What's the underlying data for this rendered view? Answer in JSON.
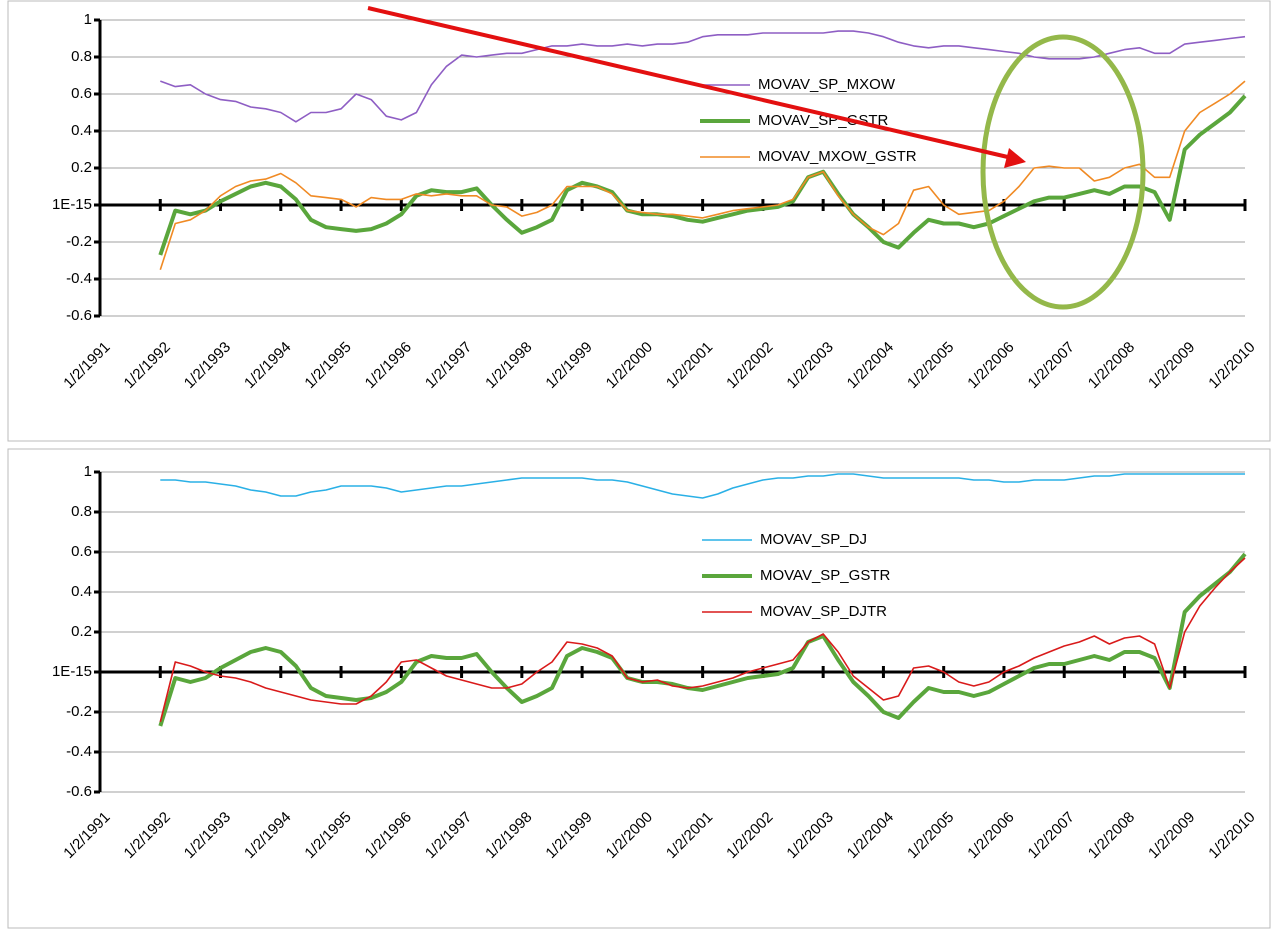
{
  "chart_data": [
    {
      "type": "line",
      "x": [
        1992,
        1992.25,
        1992.5,
        1992.75,
        1993,
        1993.25,
        1993.5,
        1993.75,
        1994,
        1994.25,
        1994.5,
        1994.75,
        1995,
        1995.25,
        1995.5,
        1995.75,
        1996,
        1996.25,
        1996.5,
        1996.75,
        1997,
        1997.25,
        1997.5,
        1997.75,
        1998,
        1998.25,
        1998.5,
        1998.75,
        1999,
        1999.25,
        1999.5,
        1999.75,
        2000,
        2000.25,
        2000.5,
        2000.75,
        2001,
        2001.25,
        2001.5,
        2001.75,
        2002,
        2002.25,
        2002.5,
        2002.75,
        2003,
        2003.25,
        2003.5,
        2003.75,
        2004,
        2004.25,
        2004.5,
        2004.75,
        2005,
        2005.25,
        2005.5,
        2005.75,
        2006,
        2006.25,
        2006.5,
        2006.75,
        2007,
        2007.25,
        2007.5,
        2007.75,
        2008,
        2008.25,
        2008.5,
        2008.75,
        2009,
        2009.25,
        2009.5,
        2009.75,
        2010
      ],
      "xlim": [
        1991,
        2010
      ],
      "xticks": [
        {
          "value": 1991,
          "label": "1/2/1991"
        },
        {
          "value": 1992,
          "label": "1/2/1992"
        },
        {
          "value": 1993,
          "label": "1/2/1993"
        },
        {
          "value": 1994,
          "label": "1/2/1994"
        },
        {
          "value": 1995,
          "label": "1/2/1995"
        },
        {
          "value": 1996,
          "label": "1/2/1996"
        },
        {
          "value": 1997,
          "label": "1/2/1997"
        },
        {
          "value": 1998,
          "label": "1/2/1998"
        },
        {
          "value": 1999,
          "label": "1/2/1999"
        },
        {
          "value": 2000,
          "label": "1/2/2000"
        },
        {
          "value": 2001,
          "label": "1/2/2001"
        },
        {
          "value": 2002,
          "label": "1/2/2002"
        },
        {
          "value": 2003,
          "label": "1/2/2003"
        },
        {
          "value": 2004,
          "label": "1/2/2004"
        },
        {
          "value": 2005,
          "label": "1/2/2005"
        },
        {
          "value": 2006,
          "label": "1/2/2006"
        },
        {
          "value": 2007,
          "label": "1/2/2007"
        },
        {
          "value": 2008,
          "label": "1/2/2008"
        },
        {
          "value": 2009,
          "label": "1/2/2009"
        },
        {
          "value": 2010,
          "label": "1/2/2010"
        }
      ],
      "ylim": [
        -0.6,
        1
      ],
      "yticks": [
        -0.6,
        -0.4,
        -0.2,
        {
          "value": 1e-15,
          "label": "1E-15"
        },
        0.2,
        0.4,
        0.6,
        0.8,
        1
      ],
      "grid": true,
      "legend": "center-right",
      "series": [
        {
          "name": "MOVAV_SP_MXOW",
          "color": "#8e5ec4",
          "values": [
            0.67,
            0.64,
            0.65,
            0.6,
            0.57,
            0.56,
            0.53,
            0.52,
            0.5,
            0.45,
            0.5,
            0.5,
            0.52,
            0.6,
            0.57,
            0.48,
            0.46,
            0.5,
            0.65,
            0.75,
            0.81,
            0.8,
            0.81,
            0.82,
            0.82,
            0.84,
            0.86,
            0.86,
            0.87,
            0.86,
            0.86,
            0.87,
            0.86,
            0.87,
            0.87,
            0.88,
            0.91,
            0.92,
            0.92,
            0.92,
            0.93,
            0.93,
            0.93,
            0.93,
            0.93,
            0.94,
            0.94,
            0.93,
            0.91,
            0.88,
            0.86,
            0.85,
            0.86,
            0.86,
            0.85,
            0.84,
            0.83,
            0.82,
            0.8,
            0.79,
            0.79,
            0.79,
            0.8,
            0.82,
            0.84,
            0.85,
            0.82,
            0.82,
            0.87,
            0.88,
            0.89,
            0.9,
            0.91
          ]
        },
        {
          "name": "MOVAV_SP_GSTR",
          "color": "#5aa63c",
          "values": [
            -0.27,
            -0.03,
            -0.05,
            -0.03,
            0.02,
            0.06,
            0.1,
            0.12,
            0.1,
            0.03,
            -0.08,
            -0.12,
            -0.13,
            -0.14,
            -0.13,
            -0.1,
            -0.05,
            0.05,
            0.08,
            0.07,
            0.07,
            0.09,
            0.0,
            -0.08,
            -0.15,
            -0.12,
            -0.08,
            0.08,
            0.12,
            0.1,
            0.07,
            -0.03,
            -0.05,
            -0.05,
            -0.06,
            -0.08,
            -0.09,
            -0.07,
            -0.05,
            -0.03,
            -0.02,
            -0.01,
            0.02,
            0.15,
            0.18,
            0.06,
            -0.05,
            -0.12,
            -0.2,
            -0.23,
            -0.15,
            -0.08,
            -0.1,
            -0.1,
            -0.12,
            -0.1,
            -0.06,
            -0.02,
            0.02,
            0.04,
            0.04,
            0.06,
            0.08,
            0.06,
            0.1,
            0.1,
            0.07,
            -0.08,
            0.3,
            0.38,
            0.44,
            0.5,
            0.59
          ]
        },
        {
          "name": "MOVAV_MXOW_GSTR",
          "color": "#f08a24",
          "values": [
            -0.35,
            -0.1,
            -0.08,
            -0.03,
            0.05,
            0.1,
            0.13,
            0.14,
            0.17,
            0.12,
            0.05,
            0.04,
            0.03,
            -0.01,
            0.04,
            0.03,
            0.03,
            0.06,
            0.05,
            0.06,
            0.05,
            0.05,
            0.0,
            -0.01,
            -0.06,
            -0.04,
            0.0,
            0.1,
            0.1,
            0.1,
            0.06,
            -0.03,
            -0.04,
            -0.05,
            -0.05,
            -0.06,
            -0.07,
            -0.05,
            -0.03,
            -0.02,
            -0.01,
            0.0,
            0.03,
            0.15,
            0.18,
            0.05,
            -0.05,
            -0.12,
            -0.16,
            -0.1,
            0.08,
            0.1,
            0.0,
            -0.05,
            -0.04,
            -0.03,
            0.02,
            0.1,
            0.2,
            0.21,
            0.2,
            0.2,
            0.13,
            0.15,
            0.2,
            0.22,
            0.15,
            0.15,
            0.4,
            0.5,
            0.55,
            0.6,
            0.67
          ]
        }
      ]
    },
    {
      "type": "line",
      "x": [
        1992,
        1992.25,
        1992.5,
        1992.75,
        1993,
        1993.25,
        1993.5,
        1993.75,
        1994,
        1994.25,
        1994.5,
        1994.75,
        1995,
        1995.25,
        1995.5,
        1995.75,
        1996,
        1996.25,
        1996.5,
        1996.75,
        1997,
        1997.25,
        1997.5,
        1997.75,
        1998,
        1998.25,
        1998.5,
        1998.75,
        1999,
        1999.25,
        1999.5,
        1999.75,
        2000,
        2000.25,
        2000.5,
        2000.75,
        2001,
        2001.25,
        2001.5,
        2001.75,
        2002,
        2002.25,
        2002.5,
        2002.75,
        2003,
        2003.25,
        2003.5,
        2003.75,
        2004,
        2004.25,
        2004.5,
        2004.75,
        2005,
        2005.25,
        2005.5,
        2005.75,
        2006,
        2006.25,
        2006.5,
        2006.75,
        2007,
        2007.25,
        2007.5,
        2007.75,
        2008,
        2008.25,
        2008.5,
        2008.75,
        2009,
        2009.25,
        2009.5,
        2009.75,
        2010
      ],
      "xlim": [
        1991,
        2010
      ],
      "xticks": [
        {
          "value": 1991,
          "label": "1/2/1991"
        },
        {
          "value": 1992,
          "label": "1/2/1992"
        },
        {
          "value": 1993,
          "label": "1/2/1993"
        },
        {
          "value": 1994,
          "label": "1/2/1994"
        },
        {
          "value": 1995,
          "label": "1/2/1995"
        },
        {
          "value": 1996,
          "label": "1/2/1996"
        },
        {
          "value": 1997,
          "label": "1/2/1997"
        },
        {
          "value": 1998,
          "label": "1/2/1998"
        },
        {
          "value": 1999,
          "label": "1/2/1999"
        },
        {
          "value": 2000,
          "label": "1/2/2000"
        },
        {
          "value": 2001,
          "label": "1/2/2001"
        },
        {
          "value": 2002,
          "label": "1/2/2002"
        },
        {
          "value": 2003,
          "label": "1/2/2003"
        },
        {
          "value": 2004,
          "label": "1/2/2004"
        },
        {
          "value": 2005,
          "label": "1/2/2005"
        },
        {
          "value": 2006,
          "label": "1/2/2006"
        },
        {
          "value": 2007,
          "label": "1/2/2007"
        },
        {
          "value": 2008,
          "label": "1/2/2008"
        },
        {
          "value": 2009,
          "label": "1/2/2009"
        },
        {
          "value": 2010,
          "label": "1/2/2010"
        }
      ],
      "ylim": [
        -0.6,
        1
      ],
      "yticks": [
        -0.6,
        -0.4,
        -0.2,
        {
          "value": 1e-15,
          "label": "1E-15"
        },
        0.2,
        0.4,
        0.6,
        0.8,
        1
      ],
      "grid": true,
      "legend": "center-right",
      "series": [
        {
          "name": "MOVAV_SP_DJ",
          "color": "#2ab0e6",
          "values": [
            0.96,
            0.96,
            0.95,
            0.95,
            0.94,
            0.93,
            0.91,
            0.9,
            0.88,
            0.88,
            0.9,
            0.91,
            0.93,
            0.93,
            0.93,
            0.92,
            0.9,
            0.91,
            0.92,
            0.93,
            0.93,
            0.94,
            0.95,
            0.96,
            0.97,
            0.97,
            0.97,
            0.97,
            0.97,
            0.96,
            0.96,
            0.95,
            0.93,
            0.91,
            0.89,
            0.88,
            0.87,
            0.89,
            0.92,
            0.94,
            0.96,
            0.97,
            0.97,
            0.98,
            0.98,
            0.99,
            0.99,
            0.98,
            0.97,
            0.97,
            0.97,
            0.97,
            0.97,
            0.97,
            0.96,
            0.96,
            0.95,
            0.95,
            0.96,
            0.96,
            0.96,
            0.97,
            0.98,
            0.98,
            0.99,
            0.99,
            0.99,
            0.99,
            0.99,
            0.99,
            0.99,
            0.99,
            0.99
          ]
        },
        {
          "name": "MOVAV_SP_GSTR",
          "color": "#5aa63c",
          "values": [
            -0.27,
            -0.03,
            -0.05,
            -0.03,
            0.02,
            0.06,
            0.1,
            0.12,
            0.1,
            0.03,
            -0.08,
            -0.12,
            -0.13,
            -0.14,
            -0.13,
            -0.1,
            -0.05,
            0.05,
            0.08,
            0.07,
            0.07,
            0.09,
            0.0,
            -0.08,
            -0.15,
            -0.12,
            -0.08,
            0.08,
            0.12,
            0.1,
            0.07,
            -0.03,
            -0.05,
            -0.05,
            -0.06,
            -0.08,
            -0.09,
            -0.07,
            -0.05,
            -0.03,
            -0.02,
            -0.01,
            0.02,
            0.15,
            0.18,
            0.06,
            -0.05,
            -0.12,
            -0.2,
            -0.23,
            -0.15,
            -0.08,
            -0.1,
            -0.1,
            -0.12,
            -0.1,
            -0.06,
            -0.02,
            0.02,
            0.04,
            0.04,
            0.06,
            0.08,
            0.06,
            0.1,
            0.1,
            0.07,
            -0.08,
            0.3,
            0.38,
            0.44,
            0.5,
            0.59
          ]
        },
        {
          "name": "MOVAV_SP_DJTR",
          "color": "#d91a1a",
          "values": [
            -0.25,
            0.05,
            0.03,
            0.0,
            -0.02,
            -0.03,
            -0.05,
            -0.08,
            -0.1,
            -0.12,
            -0.14,
            -0.15,
            -0.16,
            -0.16,
            -0.12,
            -0.05,
            0.05,
            0.06,
            0.02,
            -0.02,
            -0.04,
            -0.06,
            -0.08,
            -0.08,
            -0.06,
            0.0,
            0.05,
            0.15,
            0.14,
            0.12,
            0.08,
            -0.03,
            -0.05,
            -0.04,
            -0.07,
            -0.08,
            -0.07,
            -0.05,
            -0.03,
            0.0,
            0.02,
            0.04,
            0.06,
            0.15,
            0.19,
            0.1,
            -0.02,
            -0.08,
            -0.14,
            -0.12,
            0.02,
            0.03,
            0.0,
            -0.05,
            -0.07,
            -0.05,
            0.0,
            0.03,
            0.07,
            0.1,
            0.13,
            0.15,
            0.18,
            0.14,
            0.17,
            0.18,
            0.14,
            -0.08,
            0.2,
            0.33,
            0.42,
            0.5,
            0.57
          ]
        }
      ]
    }
  ]
}
